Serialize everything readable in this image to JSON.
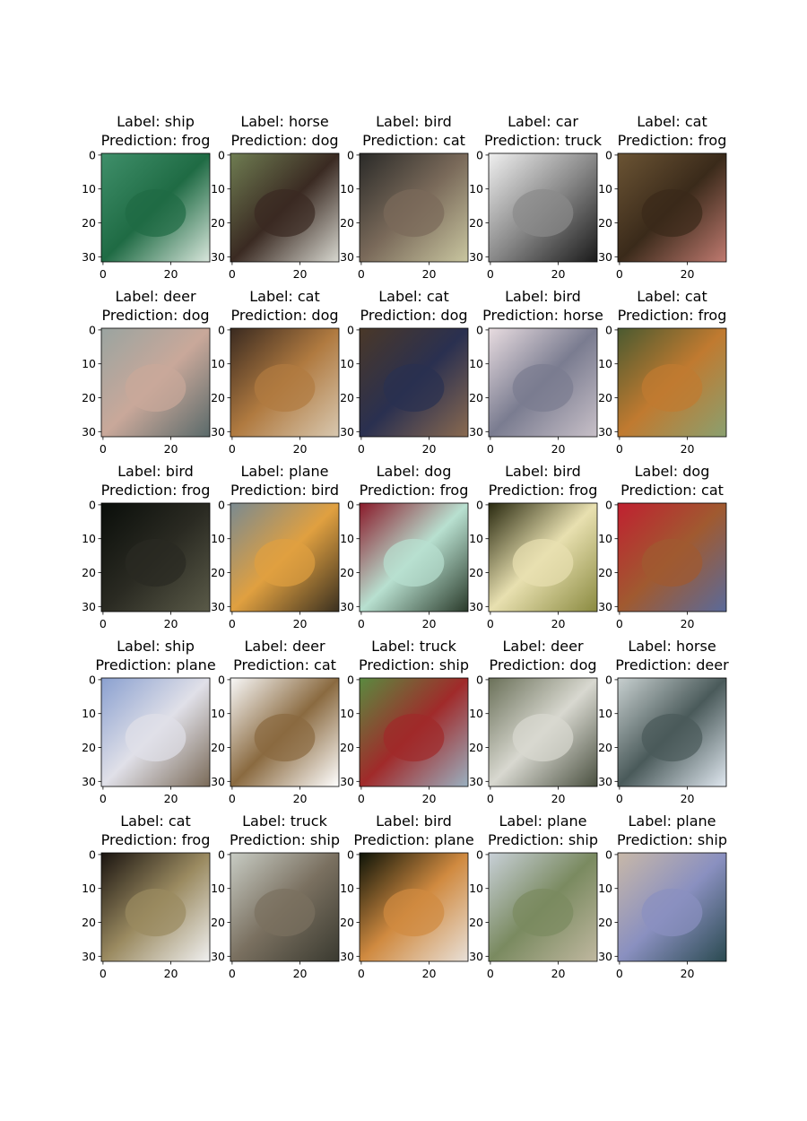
{
  "panels": [
    {
      "label": "Label: ship",
      "prediction": "Prediction: frog"
    },
    {
      "label": "Label: horse",
      "prediction": "Prediction: dog"
    },
    {
      "label": "Label: bird",
      "prediction": "Prediction: cat"
    },
    {
      "label": "Label: car",
      "prediction": "Prediction: truck"
    },
    {
      "label": "Label: cat",
      "prediction": "Prediction: frog"
    },
    {
      "label": "Label: deer",
      "prediction": "Prediction: dog"
    },
    {
      "label": "Label: cat",
      "prediction": "Prediction: dog"
    },
    {
      "label": "Label: cat",
      "prediction": "Prediction: dog"
    },
    {
      "label": "Label: bird",
      "prediction": "Prediction: horse"
    },
    {
      "label": "Label: cat",
      "prediction": "Prediction: frog"
    },
    {
      "label": "Label: bird",
      "prediction": "Prediction: frog"
    },
    {
      "label": "Label: plane",
      "prediction": "Prediction: bird"
    },
    {
      "label": "Label: dog",
      "prediction": "Prediction: frog"
    },
    {
      "label": "Label: bird",
      "prediction": "Prediction: frog"
    },
    {
      "label": "Label: dog",
      "prediction": "Prediction: cat"
    },
    {
      "label": "Label: ship",
      "prediction": "Prediction: plane"
    },
    {
      "label": "Label: deer",
      "prediction": "Prediction: cat"
    },
    {
      "label": "Label: truck",
      "prediction": "Prediction: ship"
    },
    {
      "label": "Label: deer",
      "prediction": "Prediction: dog"
    },
    {
      "label": "Label: horse",
      "prediction": "Prediction: deer"
    },
    {
      "label": "Label: cat",
      "prediction": "Prediction: frog"
    },
    {
      "label": "Label: truck",
      "prediction": "Prediction: ship"
    },
    {
      "label": "Label: bird",
      "prediction": "Prediction: plane"
    },
    {
      "label": "Label: plane",
      "prediction": "Prediction: ship"
    },
    {
      "label": "Label: plane",
      "prediction": "Prediction: ship"
    }
  ],
  "axes": {
    "xlim": [
      -0.5,
      31.5
    ],
    "ylim": [
      31.5,
      -0.5
    ],
    "xticks": [
      0,
      20
    ],
    "yticks": [
      0,
      10,
      20,
      30
    ]
  }
}
